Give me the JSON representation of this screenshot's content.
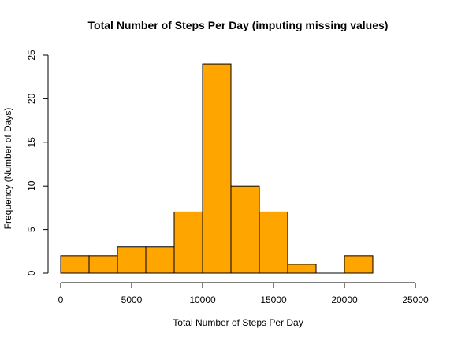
{
  "chart_data": {
    "type": "bar",
    "title": "Total Number of Steps Per Day (imputing missing values)",
    "xlabel": "Total Number of Steps Per Day",
    "ylabel": "Frequency (Number of Days)",
    "bar_color": "#FFA500",
    "xlim": [
      0,
      25000
    ],
    "ylim": [
      0,
      25
    ],
    "xticks": [
      0,
      5000,
      10000,
      15000,
      20000,
      25000
    ],
    "yticks": [
      0,
      5,
      10,
      15,
      20,
      25
    ],
    "bins": [
      {
        "start": 0,
        "end": 2000,
        "count": 2
      },
      {
        "start": 2000,
        "end": 4000,
        "count": 2
      },
      {
        "start": 4000,
        "end": 6000,
        "count": 3
      },
      {
        "start": 6000,
        "end": 8000,
        "count": 3
      },
      {
        "start": 8000,
        "end": 10000,
        "count": 7
      },
      {
        "start": 10000,
        "end": 12000,
        "count": 24
      },
      {
        "start": 12000,
        "end": 14000,
        "count": 10
      },
      {
        "start": 14000,
        "end": 16000,
        "count": 7
      },
      {
        "start": 16000,
        "end": 18000,
        "count": 1
      },
      {
        "start": 18000,
        "end": 20000,
        "count": 0
      },
      {
        "start": 20000,
        "end": 22000,
        "count": 2
      }
    ]
  }
}
